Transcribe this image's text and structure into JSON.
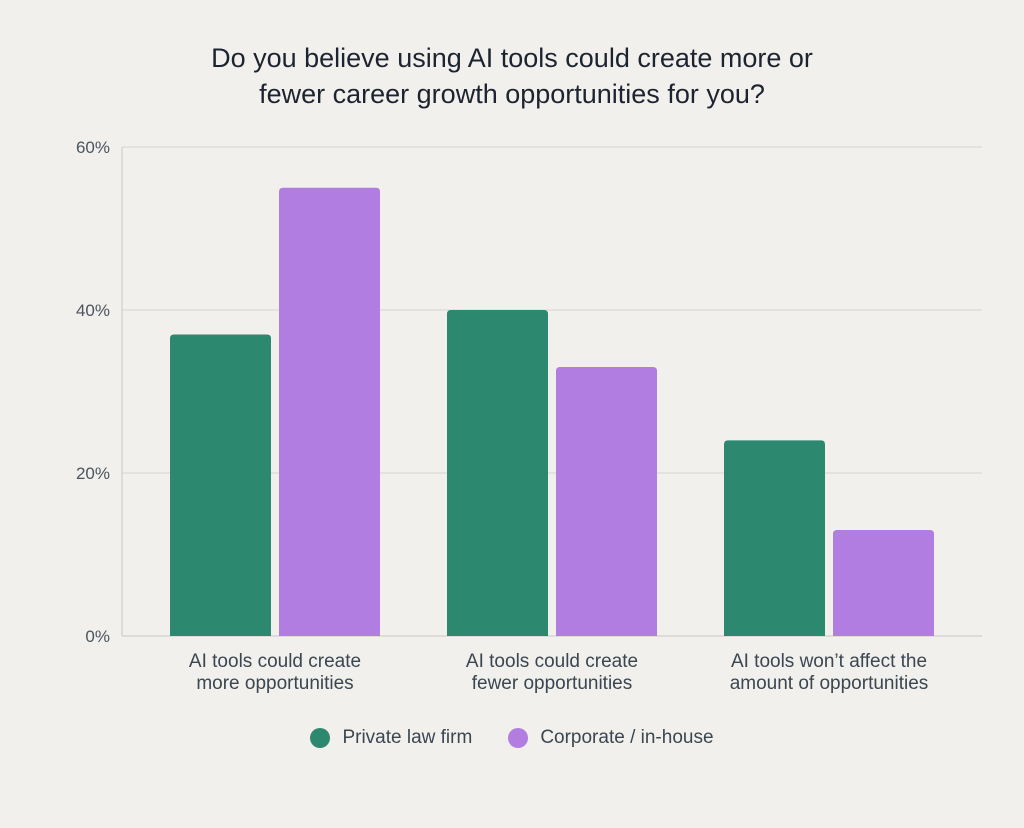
{
  "chart_data": {
    "type": "bar",
    "title_lines": [
      "Do you believe using AI tools could create more or",
      "fewer career growth opportunities for you?"
    ],
    "categories": [
      [
        "AI tools could create",
        "more opportunities"
      ],
      [
        "AI tools could create",
        "fewer opportunities"
      ],
      [
        "AI tools won’t affect the",
        "amount of opportunities"
      ]
    ],
    "series": [
      {
        "name": "Private law firm",
        "color": "#2d8870",
        "values": [
          37,
          40,
          24
        ]
      },
      {
        "name": "Corporate / in-house",
        "color": "#b27de0",
        "values": [
          55,
          33,
          13
        ]
      }
    ],
    "y_ticks": [
      "0%",
      "20%",
      "40%",
      "60%"
    ],
    "ylim": [
      0,
      60
    ],
    "grid": true,
    "legend_position": "bottom-center"
  }
}
